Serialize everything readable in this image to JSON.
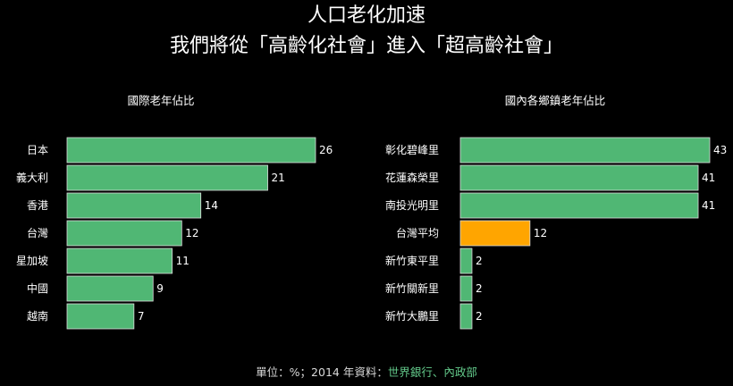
{
  "title_line1": "人口老化加速",
  "title_line2": "我們將從「高齡化社會」進入「超高齡社會」",
  "footer": {
    "unit": "單位：%；2014 年資料：",
    "sources": "世界銀行、內政部"
  },
  "colors": {
    "bar": "#50b774",
    "highlight": "#ffa500",
    "background": "#000000",
    "text": "#ffffff"
  },
  "chart_data": [
    {
      "type": "bar",
      "orientation": "horizontal",
      "title": "國際老年佔比",
      "categories": [
        "日本",
        "義大利",
        "香港",
        "台灣",
        "星加坡",
        "中國",
        "越南"
      ],
      "values": [
        26,
        21,
        14,
        12,
        11,
        9,
        7
      ],
      "xlim": [
        0,
        26
      ]
    },
    {
      "type": "bar",
      "orientation": "horizontal",
      "title": "國內各鄉鎮老年佔比",
      "categories": [
        "彰化碧峰里",
        "花蓮森榮里",
        "南投光明里",
        "台灣平均",
        "新竹東平里",
        "新竹關新里",
        "新竹大鵬里"
      ],
      "values": [
        43,
        41,
        41,
        12,
        2,
        2,
        2
      ],
      "highlight_category": "台灣平均",
      "xlim": [
        0,
        43
      ]
    }
  ]
}
